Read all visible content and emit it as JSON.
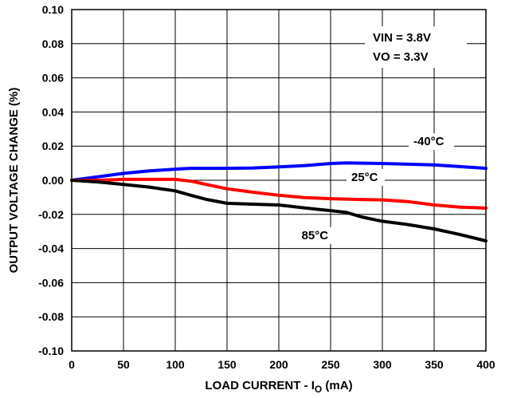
{
  "chart_data": {
    "type": "line",
    "xlabel": "LOAD CURRENT - I",
    "xlabel_sub": "O",
    "xlabel_unit": " (mA)",
    "ylabel": "OUTPUT VOLTAGE CHANGE (%)",
    "xlim": [
      0,
      400
    ],
    "ylim": [
      -0.1,
      0.1
    ],
    "x_ticks": [
      "0",
      "50",
      "100",
      "150",
      "200",
      "250",
      "300",
      "350",
      "400"
    ],
    "y_ticks": [
      "0.10",
      "0.08",
      "0.06",
      "0.04",
      "0.02",
      "0.00",
      "-0.02",
      "-0.04",
      "-0.06",
      "-0.08",
      "-0.10"
    ],
    "grid": true,
    "conditions": [
      "VIN = 3.8V",
      "VO = 3.3V"
    ],
    "series": [
      {
        "name": "-40°C",
        "color": "#0000ff",
        "x": [
          0,
          25,
          50,
          75,
          100,
          115,
          150,
          175,
          200,
          225,
          250,
          265,
          300,
          350,
          400
        ],
        "y": [
          0.0,
          0.002,
          0.004,
          0.0055,
          0.0065,
          0.007,
          0.007,
          0.0072,
          0.0078,
          0.0086,
          0.0098,
          0.0102,
          0.0098,
          0.009,
          0.007
        ]
      },
      {
        "name": "25°C",
        "color": "#ff0000",
        "x": [
          0,
          25,
          50,
          75,
          100,
          115,
          130,
          150,
          175,
          200,
          225,
          250,
          275,
          300,
          325,
          350,
          375,
          400
        ],
        "y": [
          0.0,
          0.0,
          0.0005,
          0.0005,
          0.0005,
          -0.0005,
          -0.0025,
          -0.005,
          -0.007,
          -0.0088,
          -0.0102,
          -0.0108,
          -0.0112,
          -0.0115,
          -0.0125,
          -0.0145,
          -0.0158,
          -0.0163
        ]
      },
      {
        "name": "85°C",
        "color": "#000000",
        "x": [
          0,
          25,
          50,
          75,
          100,
          115,
          130,
          150,
          175,
          200,
          225,
          250,
          265,
          280,
          300,
          325,
          350,
          375,
          400
        ],
        "y": [
          0.0,
          -0.001,
          -0.0025,
          -0.004,
          -0.0062,
          -0.0088,
          -0.0112,
          -0.0135,
          -0.014,
          -0.0145,
          -0.0162,
          -0.0178,
          -0.0188,
          -0.0215,
          -0.024,
          -0.026,
          -0.0285,
          -0.0318,
          -0.0355
        ]
      }
    ],
    "series_labels": [
      {
        "series": 0,
        "text": "-40°C",
        "x": 330,
        "y": 0.0205
      },
      {
        "series": 1,
        "text": "25°C",
        "x": 270,
        "y": -0.0005
      },
      {
        "series": 2,
        "text": "85°C",
        "x": 222,
        "y": -0.0345
      }
    ]
  }
}
